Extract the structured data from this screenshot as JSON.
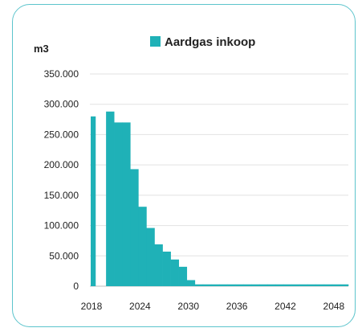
{
  "chart_data": {
    "type": "bar",
    "y_unit_label": "m3",
    "legend": [
      {
        "label": "Aardgas inkoop",
        "color": "#1fb1b7"
      }
    ],
    "x": [
      2018,
      2019,
      2020,
      2021,
      2022,
      2023,
      2024,
      2025,
      2026,
      2027,
      2028,
      2029,
      2030,
      2031,
      2032,
      2033,
      2034,
      2035,
      2036,
      2037,
      2038,
      2039,
      2040,
      2041,
      2042,
      2043,
      2044,
      2045,
      2046,
      2047,
      2048,
      2049
    ],
    "series": [
      {
        "color": "#1fb1b7",
        "values": [
          280000,
          0,
          288000,
          270000,
          270000,
          193000,
          131000,
          96000,
          69000,
          57000,
          44000,
          32000,
          10000,
          3000,
          3000,
          3000,
          3000,
          3000,
          3000,
          3000,
          3000,
          3000,
          3000,
          3000,
          3000,
          3000,
          3000,
          3000,
          3000,
          3000,
          3000,
          3000
        ]
      }
    ],
    "x_tick_labels": [
      "2018",
      "2024",
      "2030",
      "2036",
      "2042",
      "2048"
    ],
    "x_tick_values": [
      2018,
      2024,
      2030,
      2036,
      2042,
      2048
    ],
    "y_tick_labels": [
      "0",
      "50.000",
      "100.000",
      "150.000",
      "200.000",
      "250.000",
      "300.000",
      "350.000"
    ],
    "y_tick_values": [
      0,
      50000,
      100000,
      150000,
      200000,
      250000,
      300000,
      350000
    ],
    "ylim": [
      0,
      350000
    ],
    "grid": "horizontal",
    "legend_position": "top"
  }
}
